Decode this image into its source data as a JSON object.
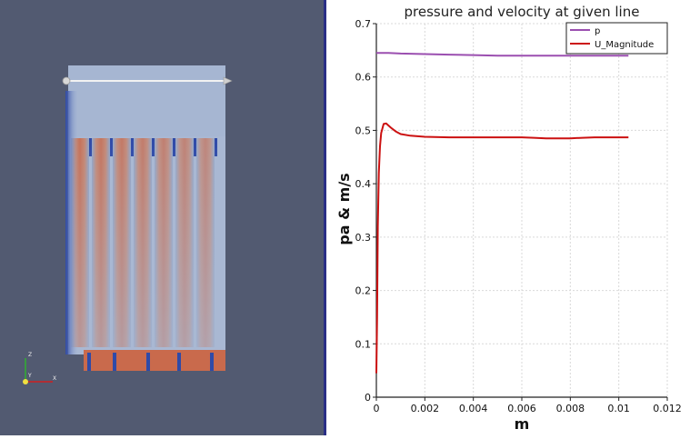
{
  "viewport": {
    "axes_triad": {
      "z": "Z",
      "y": "Y",
      "x": "X"
    },
    "colors": {
      "background": "#525a71",
      "hot": "#c96a4c",
      "cold": "#3b57b0",
      "mid": "#a9b8d3",
      "line_probe": "#f2f2f2"
    }
  },
  "chart_data": {
    "type": "line",
    "title": "pressure and velocity at given line",
    "xlabel": "m",
    "ylabel": "pa & m/s",
    "xlim": [
      0,
      0.012
    ],
    "ylim": [
      0,
      0.7
    ],
    "xticks": [
      "0",
      "0.002",
      "0.004",
      "0.006",
      "0.008",
      "0.01",
      "0.012"
    ],
    "yticks": [
      "0",
      "0.1",
      "0.2",
      "0.3",
      "0.4",
      "0.5",
      "0.6",
      "0.7"
    ],
    "grid": true,
    "legend_position": "top-right",
    "series": [
      {
        "name": "p",
        "color": "#9b4fb0",
        "x": [
          0,
          0.0005,
          0.001,
          0.002,
          0.003,
          0.004,
          0.005,
          0.006,
          0.007,
          0.008,
          0.009,
          0.0104
        ],
        "y": [
          0.645,
          0.645,
          0.644,
          0.643,
          0.642,
          0.641,
          0.64,
          0.64,
          0.64,
          0.64,
          0.64,
          0.64
        ]
      },
      {
        "name": "U_Magnitude",
        "color": "#cc1111",
        "x": [
          0,
          3e-05,
          6e-05,
          0.0001,
          0.00015,
          0.0002,
          0.0003,
          0.0004,
          0.0006,
          0.0008,
          0.001,
          0.0014,
          0.002,
          0.003,
          0.004,
          0.005,
          0.006,
          0.0065,
          0.007,
          0.0075,
          0.008,
          0.0085,
          0.009,
          0.0104
        ],
        "y": [
          0.045,
          0.15,
          0.32,
          0.42,
          0.47,
          0.495,
          0.512,
          0.513,
          0.505,
          0.498,
          0.493,
          0.49,
          0.488,
          0.487,
          0.487,
          0.487,
          0.487,
          0.486,
          0.485,
          0.485,
          0.485,
          0.486,
          0.487,
          0.487
        ]
      }
    ]
  }
}
